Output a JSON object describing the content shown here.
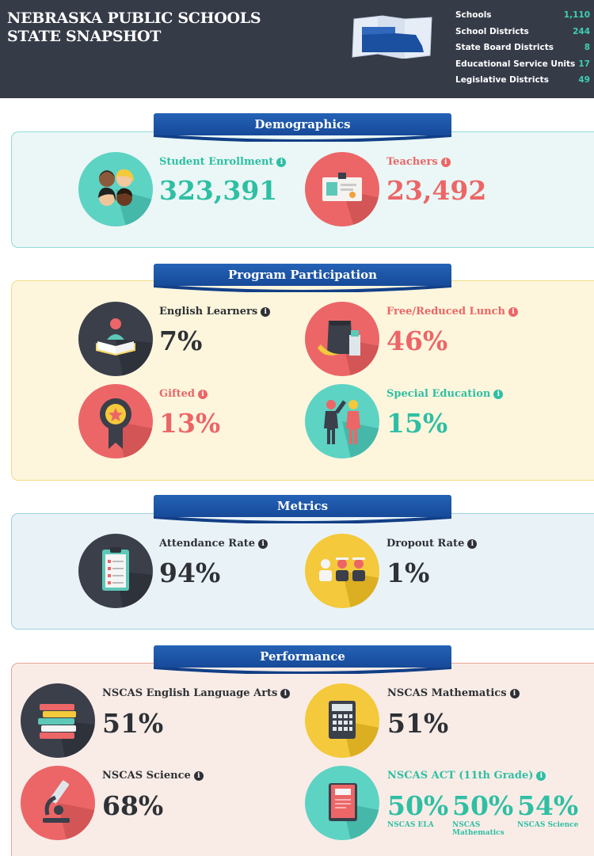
{
  "header": {
    "title": "NEBRASKA PUBLIC SCHOOLS STATE SNAPSHOT",
    "stats": [
      {
        "label": "Schools",
        "value": "1,110"
      },
      {
        "label": "School Districts",
        "value": "244"
      },
      {
        "label": "State Board Districts",
        "value": "8"
      },
      {
        "label": "Educational Service Units",
        "value": "17"
      },
      {
        "label": "Legislative Districts",
        "value": "49"
      }
    ]
  },
  "sections": {
    "demographics": {
      "title": "Demographics",
      "enrollment": {
        "label": "Student Enrollment",
        "value": "323,391",
        "icon": "students-icon"
      },
      "teachers": {
        "label": "Teachers",
        "value": "23,492",
        "icon": "id-badge-icon"
      }
    },
    "program": {
      "title": "Program Participation",
      "english": {
        "label": "English Learners",
        "value": "7%",
        "icon": "reader-icon"
      },
      "lunch": {
        "label": "Free/Reduced Lunch",
        "value": "46%",
        "icon": "lunch-icon"
      },
      "gifted": {
        "label": "Gifted",
        "value": "13%",
        "icon": "award-icon"
      },
      "special": {
        "label": "Special Education",
        "value": "15%",
        "icon": "people-icon"
      }
    },
    "metrics": {
      "title": "Metrics",
      "attendance": {
        "label": "Attendance Rate",
        "value": "94%",
        "icon": "clipboard-icon"
      },
      "dropout": {
        "label": "Dropout Rate",
        "value": "1%",
        "icon": "graduates-icon"
      }
    },
    "performance": {
      "title": "Performance",
      "ela": {
        "label": "NSCAS English Language Arts",
        "value": "51%",
        "icon": "books-icon"
      },
      "math": {
        "label": "NSCAS Mathematics",
        "value": "51%",
        "icon": "calculator-icon"
      },
      "science": {
        "label": "NSCAS Science",
        "value": "68%",
        "icon": "microscope-icon"
      },
      "act": {
        "label": "NSCAS ACT (11th Grade)",
        "icon": "act-book-icon",
        "scores": [
          {
            "value": "50%",
            "label": "NSCAS ELA"
          },
          {
            "value": "50%",
            "label": "NSCAS Mathematics"
          },
          {
            "value": "54%",
            "label": "NSCAS Science"
          }
        ]
      }
    }
  },
  "info_glyph": "i",
  "colors": {
    "header_bg": "#363b48",
    "teal": "#2fbfa3",
    "coral": "#ec6667",
    "dark": "#2e3135",
    "ribbon": "#1d56a8"
  }
}
